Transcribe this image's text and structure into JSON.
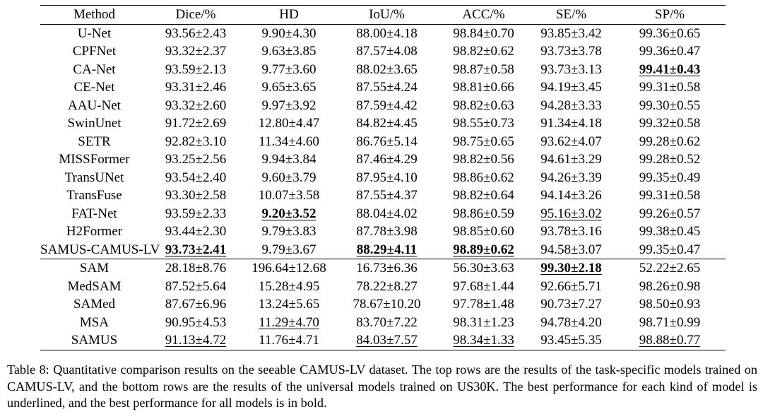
{
  "table": {
    "headers": [
      "Method",
      "Dice/%",
      "HD",
      "IoU/%",
      "ACC/%",
      "SE/%",
      "SP/%"
    ],
    "rows": [
      {
        "group": "task-specific",
        "method": "U-Net",
        "cells": [
          "93.56±2.43",
          "9.90±4.30",
          "88.00±4.18",
          "98.84±0.70",
          "93.85±3.42",
          "99.36±0.65"
        ],
        "bold": [
          false,
          false,
          false,
          false,
          false,
          false
        ],
        "underline": [
          false,
          false,
          false,
          false,
          false,
          false
        ]
      },
      {
        "group": "task-specific",
        "method": "CPFNet",
        "cells": [
          "93.32±2.37",
          "9.63±3.85",
          "87.57±4.08",
          "98.82±0.62",
          "93.73±3.78",
          "99.36±0.47"
        ],
        "bold": [
          false,
          false,
          false,
          false,
          false,
          false
        ],
        "underline": [
          false,
          false,
          false,
          false,
          false,
          false
        ]
      },
      {
        "group": "task-specific",
        "method": "CA-Net",
        "cells": [
          "93.59±2.13",
          "9.77±3.60",
          "88.02±3.65",
          "98.87±0.58",
          "93.73±3.13",
          "99.41±0.43"
        ],
        "bold": [
          false,
          false,
          false,
          false,
          false,
          true
        ],
        "underline": [
          false,
          false,
          false,
          false,
          false,
          true
        ]
      },
      {
        "group": "task-specific",
        "method": "CE-Net",
        "cells": [
          "93.31±2.46",
          "9.65±3.65",
          "87.55±4.24",
          "98.81±0.66",
          "94.19±3.45",
          "99.31±0.58"
        ],
        "bold": [
          false,
          false,
          false,
          false,
          false,
          false
        ],
        "underline": [
          false,
          false,
          false,
          false,
          false,
          false
        ]
      },
      {
        "group": "task-specific",
        "method": "AAU-Net",
        "cells": [
          "93.32±2.60",
          "9.97±3.92",
          "87.59±4.42",
          "98.82±0.63",
          "94.28±3.33",
          "99.30±0.55"
        ],
        "bold": [
          false,
          false,
          false,
          false,
          false,
          false
        ],
        "underline": [
          false,
          false,
          false,
          false,
          false,
          false
        ]
      },
      {
        "group": "task-specific",
        "method": "SwinUnet",
        "cells": [
          "91.72±2.69",
          "12.80±4.47",
          "84.82±4.45",
          "98.55±0.73",
          "91.34±4.18",
          "99.32±0.58"
        ],
        "bold": [
          false,
          false,
          false,
          false,
          false,
          false
        ],
        "underline": [
          false,
          false,
          false,
          false,
          false,
          false
        ]
      },
      {
        "group": "task-specific",
        "method": "SETR",
        "cells": [
          "92.82±3.10",
          "11.34±4.60",
          "86.76±5.14",
          "98.75±0.65",
          "93.62±4.07",
          "99.28±0.62"
        ],
        "bold": [
          false,
          false,
          false,
          false,
          false,
          false
        ],
        "underline": [
          false,
          false,
          false,
          false,
          false,
          false
        ]
      },
      {
        "group": "task-specific",
        "method": "MISSFormer",
        "cells": [
          "93.25±2.56",
          "9.94±3.84",
          "87.46±4.29",
          "98.82±0.56",
          "94.61±3.29",
          "99.28±0.52"
        ],
        "bold": [
          false,
          false,
          false,
          false,
          false,
          false
        ],
        "underline": [
          false,
          false,
          false,
          false,
          false,
          false
        ]
      },
      {
        "group": "task-specific",
        "method": "TransUNet",
        "cells": [
          "93.54±2.40",
          "9.60±3.79",
          "87.95±4.10",
          "98.86±0.62",
          "94.26±3.39",
          "99.35±0.49"
        ],
        "bold": [
          false,
          false,
          false,
          false,
          false,
          false
        ],
        "underline": [
          false,
          false,
          false,
          false,
          false,
          false
        ]
      },
      {
        "group": "task-specific",
        "method": "TransFuse",
        "cells": [
          "93.30±2.58",
          "10.07±3.58",
          "87.55±4.37",
          "98.82±0.64",
          "94.14±3.26",
          "99.31±0.58"
        ],
        "bold": [
          false,
          false,
          false,
          false,
          false,
          false
        ],
        "underline": [
          false,
          false,
          false,
          false,
          false,
          false
        ]
      },
      {
        "group": "task-specific",
        "method": "FAT-Net",
        "cells": [
          "93.59±2.33",
          "9.20±3.52",
          "88.04±4.02",
          "98.86±0.59",
          "95.16±3.02",
          "99.26±0.57"
        ],
        "bold": [
          false,
          true,
          false,
          false,
          false,
          false
        ],
        "underline": [
          false,
          true,
          false,
          false,
          true,
          false
        ]
      },
      {
        "group": "task-specific",
        "method": "H2Former",
        "cells": [
          "93.44±2.30",
          "9.79±3.83",
          "87.78±3.98",
          "98.85±0.60",
          "93.78±3.16",
          "99.38±0.45"
        ],
        "bold": [
          false,
          false,
          false,
          false,
          false,
          false
        ],
        "underline": [
          false,
          false,
          false,
          false,
          false,
          false
        ]
      },
      {
        "group": "task-specific",
        "method": "SAMUS-CAMUS-LV",
        "cells": [
          "93.73±2.41",
          "9.79±3.67",
          "88.29±4.11",
          "98.89±0.62",
          "94.58±3.07",
          "99.35±0.47"
        ],
        "bold": [
          true,
          false,
          true,
          true,
          false,
          false
        ],
        "underline": [
          true,
          false,
          true,
          true,
          false,
          false
        ]
      },
      {
        "group": "universal",
        "method": "SAM",
        "cells": [
          "28.18±8.76",
          "196.64±12.68",
          "16.73±6.36",
          "56.30±3.63",
          "99.30±2.18",
          "52.22±2.65"
        ],
        "bold": [
          false,
          false,
          false,
          false,
          true,
          false
        ],
        "underline": [
          false,
          false,
          false,
          false,
          true,
          false
        ]
      },
      {
        "group": "universal",
        "method": "MedSAM",
        "cells": [
          "87.52±5.64",
          "15.28±4.95",
          "78.22±8.27",
          "97.68±1.44",
          "92.66±5.71",
          "98.26±0.98"
        ],
        "bold": [
          false,
          false,
          false,
          false,
          false,
          false
        ],
        "underline": [
          false,
          false,
          false,
          false,
          false,
          false
        ]
      },
      {
        "group": "universal",
        "method": "SAMed",
        "cells": [
          "87.67±6.96",
          "13.24±5.65",
          "78.67±10.20",
          "97.78±1.48",
          "90.73±7.27",
          "98.50±0.93"
        ],
        "bold": [
          false,
          false,
          false,
          false,
          false,
          false
        ],
        "underline": [
          false,
          false,
          false,
          false,
          false,
          false
        ]
      },
      {
        "group": "universal",
        "method": "MSA",
        "cells": [
          "90.95±4.53",
          "11.29±4.70",
          "83.70±7.22",
          "98.31±1.23",
          "94.78±4.20",
          "98.71±0.99"
        ],
        "bold": [
          false,
          false,
          false,
          false,
          false,
          false
        ],
        "underline": [
          false,
          true,
          false,
          false,
          false,
          false
        ]
      },
      {
        "group": "universal",
        "method": "SAMUS",
        "cells": [
          "91.13±4.72",
          "11.76±4.71",
          "84.03±7.57",
          "98.34±1.33",
          "93.45±5.35",
          "98.88±0.77"
        ],
        "bold": [
          false,
          false,
          false,
          false,
          false,
          false
        ],
        "underline": [
          true,
          false,
          true,
          true,
          false,
          true
        ]
      }
    ]
  },
  "caption": "Table 8: Quantitative comparison results on the seeable CAMUS-LV dataset. The top rows are the results of the task-specific models trained on CAMUS-LV, and the bottom rows are the results of the universal models trained on US30K. The best performance for each kind of model is underlined, and the best performance for all models is in bold."
}
